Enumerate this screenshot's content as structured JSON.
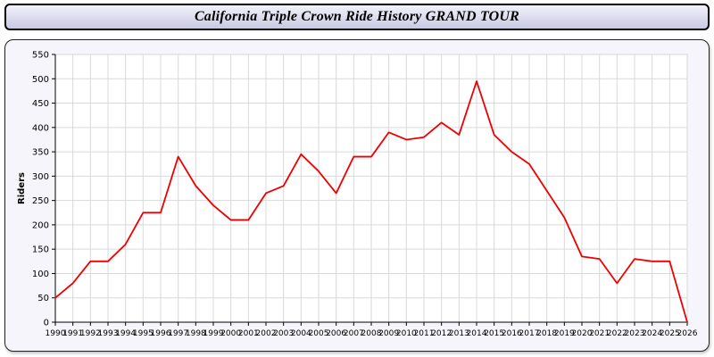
{
  "title": "California Triple Crown Ride History GRAND TOUR",
  "chart_data": {
    "type": "line",
    "title": "California Triple Crown Ride History GRAND TOUR",
    "xlabel": "",
    "ylabel": "Riders",
    "ylim": [
      0,
      550
    ],
    "ytick_step": 50,
    "grid": true,
    "legend": "none",
    "line_color": "#ee0000",
    "x": [
      1990,
      1991,
      1992,
      1993,
      1994,
      1995,
      1996,
      1997,
      1998,
      1999,
      2000,
      2001,
      2002,
      2003,
      2004,
      2005,
      2006,
      2007,
      2008,
      2009,
      2010,
      2011,
      2012,
      2013,
      2014,
      2015,
      2016,
      2017,
      2018,
      2019,
      2020,
      2021,
      2022,
      2023,
      2024,
      2025,
      2026
    ],
    "values": [
      50,
      80,
      125,
      125,
      160,
      225,
      225,
      340,
      280,
      240,
      210,
      210,
      265,
      280,
      345,
      310,
      265,
      340,
      340,
      390,
      375,
      380,
      410,
      385,
      495,
      385,
      350,
      325,
      270,
      215,
      135,
      130,
      80,
      130,
      125,
      125,
      0
    ]
  }
}
